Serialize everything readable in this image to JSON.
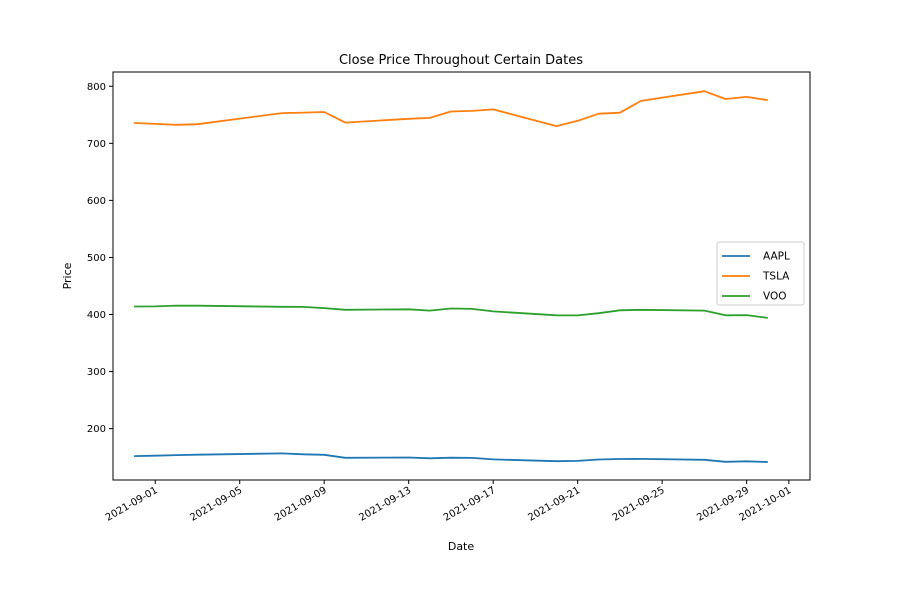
{
  "chart_data": {
    "type": "line",
    "title": "Close Price Throughout Certain Dates",
    "xlabel": "Date",
    "ylabel": "Price",
    "x_type": "date",
    "xlim": [
      "2021-08-30",
      "2021-10-02"
    ],
    "ylim": [
      110,
      825
    ],
    "x_ticks": [
      "2021-09-01",
      "2021-09-05",
      "2021-09-09",
      "2021-09-13",
      "2021-09-17",
      "2021-09-21",
      "2021-09-25",
      "2021-09-29",
      "2021-10-01"
    ],
    "y_ticks": [
      200,
      300,
      400,
      500,
      600,
      700,
      800
    ],
    "grid": false,
    "legend_position": "center-right",
    "x": [
      "2021-08-31",
      "2021-09-01",
      "2021-09-02",
      "2021-09-03",
      "2021-09-07",
      "2021-09-08",
      "2021-09-09",
      "2021-09-10",
      "2021-09-13",
      "2021-09-14",
      "2021-09-15",
      "2021-09-16",
      "2021-09-17",
      "2021-09-20",
      "2021-09-21",
      "2021-09-22",
      "2021-09-23",
      "2021-09-24",
      "2021-09-27",
      "2021-09-28",
      "2021-09-29",
      "2021-09-30"
    ],
    "series": [
      {
        "name": "AAPL",
        "color": "#1f77b4",
        "values": [
          151.8,
          152.5,
          153.6,
          154.3,
          156.7,
          155.1,
          154.1,
          148.9,
          149.5,
          148.1,
          149.0,
          148.8,
          146.1,
          142.9,
          143.4,
          145.9,
          146.8,
          146.9,
          145.4,
          141.9,
          142.8,
          141.5
        ]
      },
      {
        "name": "TSLA",
        "color": "#ff7f0e",
        "values": [
          735.7,
          734.1,
          732.4,
          733.6,
          752.9,
          753.9,
          754.9,
          736.3,
          743.0,
          744.5,
          755.8,
          756.9,
          759.5,
          730.2,
          739.4,
          751.9,
          753.6,
          774.4,
          791.4,
          777.6,
          781.3,
          775.5
        ]
      },
      {
        "name": "VOO",
        "color": "#2ca02c",
        "values": [
          414.0,
          414.3,
          415.6,
          415.4,
          413.6,
          413.3,
          411.2,
          408.3,
          409.2,
          406.9,
          410.5,
          409.9,
          405.5,
          398.7,
          398.4,
          402.3,
          407.4,
          408.2,
          406.8,
          398.7,
          399.0,
          394.1
        ]
      }
    ]
  }
}
